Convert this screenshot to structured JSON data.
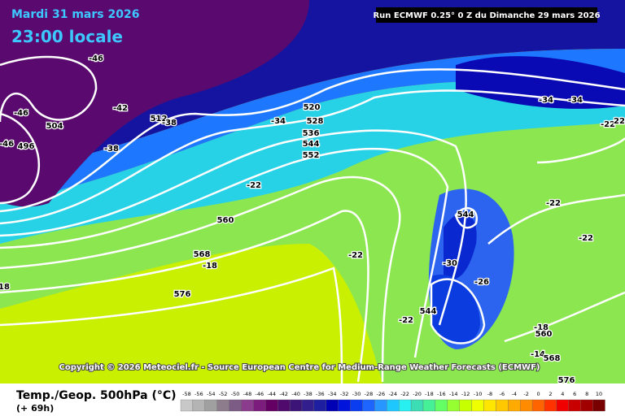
{
  "header": {
    "date": "Mardi 31 mars 2026",
    "time": "23:00 locale",
    "run": "Run ECMWF 0.25° 0 Z du Dimanche 29 mars 2026"
  },
  "copyright": "Copyright © 2026 Meteociel.fr - Source European Centre for Medium-Range Weather Forecasts (ECMWF)",
  "map_labels": [
    "-46",
    "-46",
    "-46",
    "504",
    "496",
    "-42",
    "512",
    "-38",
    "-38",
    "-34",
    "520",
    "528",
    "536",
    "544",
    "552",
    "-22",
    "560",
    "568",
    "-18",
    "18",
    "576",
    "-22",
    "544",
    "-30",
    "-26",
    "544",
    "-22",
    "-34",
    "-34",
    "-22",
    "22",
    "-22",
    "-22",
    "-18",
    "560",
    "-14",
    "568",
    "576"
  ],
  "footer": {
    "title": "Temp./Geop. 500hPa (°C)",
    "lead": "(+ 69h)"
  },
  "legend": {
    "values": [
      -58,
      -56,
      -54,
      -52,
      -50,
      -48,
      -46,
      -44,
      -42,
      -40,
      -38,
      -36,
      -34,
      -32,
      -30,
      -28,
      -26,
      -24,
      -22,
      -20,
      -18,
      -16,
      -14,
      -12,
      -10,
      -8,
      -6,
      -4,
      -2,
      0,
      2,
      4,
      6,
      8,
      10
    ],
    "colors": [
      "#c8c8c8",
      "#b4b4b4",
      "#a0a0a0",
      "#8c7c8c",
      "#7c5c84",
      "#8c3c8c",
      "#7c1c7c",
      "#640064",
      "#500a6e",
      "#3c1478",
      "#321e8c",
      "#1e1ea0",
      "#0000b4",
      "#0014dc",
      "#0a3cf0",
      "#1e64ff",
      "#2896ff",
      "#1ec8ff",
      "#28f0f0",
      "#3cdcb4",
      "#46f096",
      "#64ff64",
      "#96ff32",
      "#c8ff00",
      "#f0ff00",
      "#ffe600",
      "#ffc800",
      "#ffaa00",
      "#ff8c00",
      "#ff6400",
      "#ff3200",
      "#f00000",
      "#c80000",
      "#a00000",
      "#780000"
    ]
  }
}
